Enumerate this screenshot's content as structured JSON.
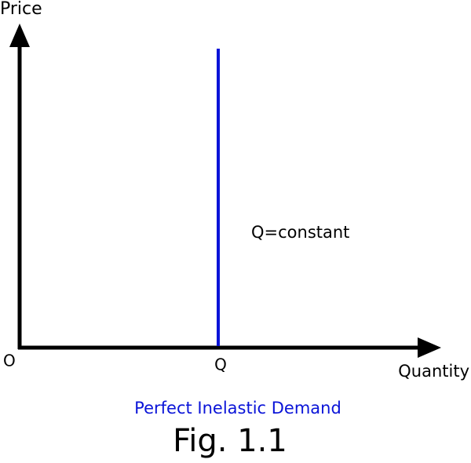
{
  "diagram": {
    "y_axis_label": "Price",
    "origin_label": "O",
    "x_axis_label": "Quantity",
    "q_label": "Q",
    "curve_label": "Q=constant",
    "subtitle": "Perfect Inelastic Demand",
    "caption": "Fig. 1.1"
  }
}
